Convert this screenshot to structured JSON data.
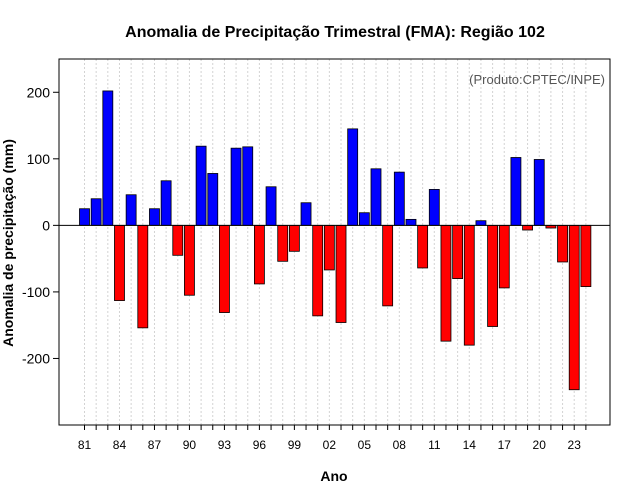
{
  "chart_data": {
    "type": "bar",
    "title": "Anomalia de Precipitação Trimestral (FMA): Região 102",
    "xlabel": "Ano",
    "ylabel": "Anomalia de precipitação (mm)",
    "credit": "(Produto:CPTEC/INPE)",
    "ylim": [
      -300,
      250
    ],
    "yticks": [
      -200,
      -100,
      0,
      100,
      200
    ],
    "grid": true,
    "colors": {
      "positive": "#0000ff",
      "negative": "#ff0000"
    },
    "categories": [
      "81",
      "82",
      "83",
      "84",
      "85",
      "86",
      "87",
      "88",
      "89",
      "90",
      "91",
      "92",
      "93",
      "94",
      "95",
      "96",
      "97",
      "98",
      "99",
      "00",
      "01",
      "02",
      "03",
      "04",
      "05",
      "06",
      "07",
      "08",
      "09",
      "10",
      "11",
      "12",
      "13",
      "14",
      "15",
      "16",
      "17",
      "18",
      "19",
      "20",
      "21",
      "22",
      "23",
      "24"
    ],
    "xtick_labels": [
      "81",
      "84",
      "87",
      "90",
      "93",
      "96",
      "99",
      "02",
      "05",
      "08",
      "11",
      "14",
      "17",
      "20",
      "23"
    ],
    "values": [
      25,
      40,
      202,
      -113,
      46,
      -154,
      25,
      67,
      -45,
      -105,
      119,
      78,
      -131,
      116,
      118,
      -88,
      58,
      -54,
      -39,
      34,
      -136,
      -67,
      -146,
      145,
      19,
      85,
      -121,
      80,
      9,
      -64,
      54,
      -174,
      -80,
      -180,
      7,
      -152,
      -94,
      102,
      -7,
      99,
      -4,
      -55,
      -247,
      -92
    ]
  }
}
